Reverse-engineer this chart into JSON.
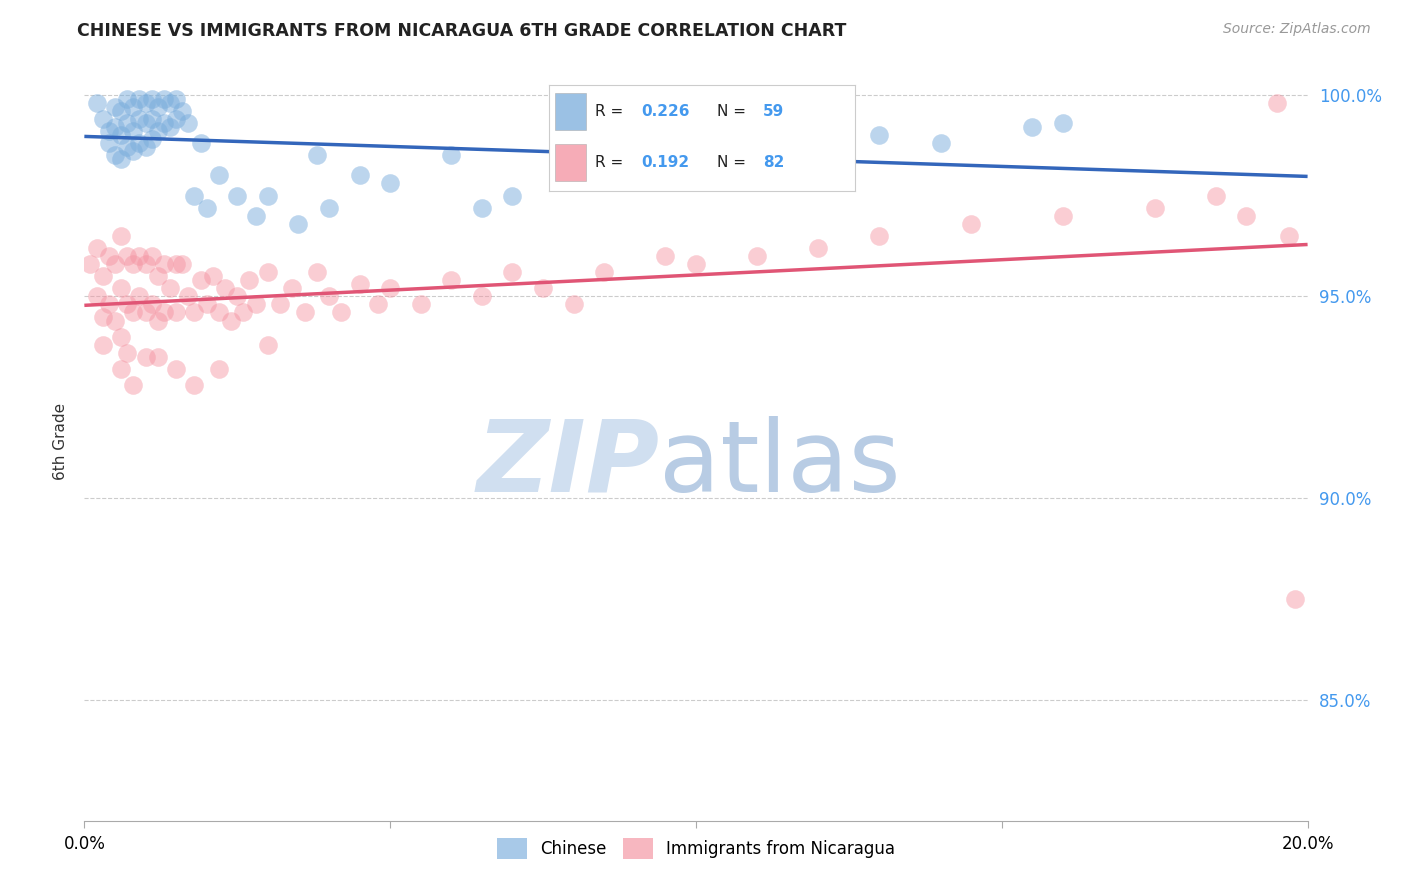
{
  "title": "CHINESE VS IMMIGRANTS FROM NICARAGUA 6TH GRADE CORRELATION CHART",
  "source": "Source: ZipAtlas.com",
  "ylabel": "6th Grade",
  "R_chinese": 0.226,
  "N_chinese": 59,
  "R_nicaragua": 0.192,
  "N_nicaragua": 82,
  "xlim": [
    0.0,
    0.2
  ],
  "ylim": [
    0.82,
    1.008
  ],
  "yticks": [
    0.85,
    0.9,
    0.95,
    1.0
  ],
  "ytick_labels": [
    "85.0%",
    "90.0%",
    "95.0%",
    "100.0%"
  ],
  "xticks": [
    0.0,
    0.05,
    0.1,
    0.15,
    0.2
  ],
  "xtick_labels": [
    "0.0%",
    "",
    "",
    "",
    "20.0%"
  ],
  "color_chinese": "#7AADDC",
  "color_nicaragua": "#F4919F",
  "line_color_chinese": "#3366BB",
  "line_color_nicaragua": "#E05575",
  "watermark_zip": "ZIP",
  "watermark_atlas": "atlas",
  "watermark_color_zip": "#D8E8F4",
  "watermark_color_atlas": "#B8D0E8",
  "chinese_x": [
    0.002,
    0.003,
    0.004,
    0.004,
    0.005,
    0.005,
    0.005,
    0.006,
    0.006,
    0.006,
    0.007,
    0.007,
    0.007,
    0.008,
    0.008,
    0.008,
    0.009,
    0.009,
    0.009,
    0.01,
    0.01,
    0.01,
    0.011,
    0.011,
    0.011,
    0.012,
    0.012,
    0.013,
    0.013,
    0.014,
    0.014,
    0.015,
    0.015,
    0.016,
    0.017,
    0.018,
    0.019,
    0.02,
    0.022,
    0.025,
    0.028,
    0.03,
    0.035,
    0.038,
    0.04,
    0.045,
    0.05,
    0.06,
    0.065,
    0.07,
    0.08,
    0.09,
    0.1,
    0.11,
    0.12,
    0.13,
    0.14,
    0.155,
    0.16
  ],
  "chinese_y": [
    0.998,
    0.994,
    0.991,
    0.988,
    0.997,
    0.992,
    0.985,
    0.996,
    0.99,
    0.984,
    0.999,
    0.993,
    0.987,
    0.997,
    0.991,
    0.986,
    0.999,
    0.994,
    0.988,
    0.998,
    0.993,
    0.987,
    0.999,
    0.994,
    0.989,
    0.997,
    0.991,
    0.999,
    0.993,
    0.998,
    0.992,
    0.999,
    0.994,
    0.996,
    0.993,
    0.975,
    0.988,
    0.972,
    0.98,
    0.975,
    0.97,
    0.975,
    0.968,
    0.985,
    0.972,
    0.98,
    0.978,
    0.985,
    0.972,
    0.975,
    0.98,
    0.982,
    0.985,
    0.988,
    0.983,
    0.99,
    0.988,
    0.992,
    0.993
  ],
  "nicaragua_x": [
    0.001,
    0.002,
    0.002,
    0.003,
    0.003,
    0.004,
    0.004,
    0.005,
    0.005,
    0.006,
    0.006,
    0.006,
    0.007,
    0.007,
    0.007,
    0.008,
    0.008,
    0.009,
    0.009,
    0.01,
    0.01,
    0.01,
    0.011,
    0.011,
    0.012,
    0.012,
    0.013,
    0.013,
    0.014,
    0.015,
    0.015,
    0.016,
    0.017,
    0.018,
    0.019,
    0.02,
    0.021,
    0.022,
    0.023,
    0.024,
    0.025,
    0.026,
    0.027,
    0.028,
    0.03,
    0.032,
    0.034,
    0.036,
    0.038,
    0.04,
    0.042,
    0.045,
    0.048,
    0.05,
    0.055,
    0.06,
    0.065,
    0.07,
    0.075,
    0.08,
    0.085,
    0.095,
    0.1,
    0.11,
    0.12,
    0.13,
    0.145,
    0.16,
    0.175,
    0.185,
    0.19,
    0.195,
    0.197,
    0.198,
    0.003,
    0.006,
    0.008,
    0.012,
    0.015,
    0.018,
    0.022,
    0.03
  ],
  "nicaragua_y": [
    0.958,
    0.962,
    0.95,
    0.955,
    0.945,
    0.96,
    0.948,
    0.958,
    0.944,
    0.965,
    0.952,
    0.94,
    0.96,
    0.948,
    0.936,
    0.958,
    0.946,
    0.96,
    0.95,
    0.958,
    0.946,
    0.935,
    0.96,
    0.948,
    0.955,
    0.944,
    0.958,
    0.946,
    0.952,
    0.958,
    0.946,
    0.958,
    0.95,
    0.946,
    0.954,
    0.948,
    0.955,
    0.946,
    0.952,
    0.944,
    0.95,
    0.946,
    0.954,
    0.948,
    0.956,
    0.948,
    0.952,
    0.946,
    0.956,
    0.95,
    0.946,
    0.953,
    0.948,
    0.952,
    0.948,
    0.954,
    0.95,
    0.956,
    0.952,
    0.948,
    0.956,
    0.96,
    0.958,
    0.96,
    0.962,
    0.965,
    0.968,
    0.97,
    0.972,
    0.975,
    0.97,
    0.998,
    0.965,
    0.875,
    0.938,
    0.932,
    0.928,
    0.935,
    0.932,
    0.928,
    0.932,
    0.938
  ]
}
